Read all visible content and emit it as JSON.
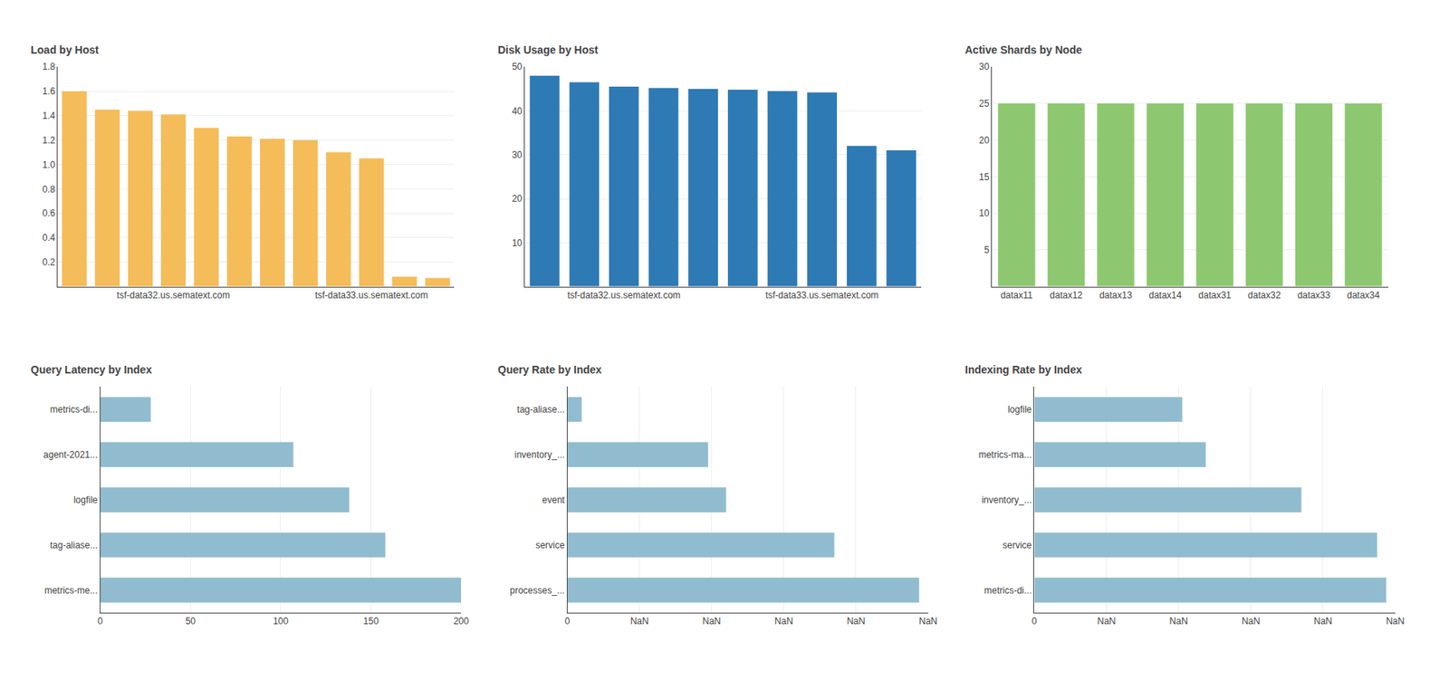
{
  "chart_data": [
    {
      "type": "bar",
      "title": "Load by Host",
      "categories": [
        null,
        null,
        null,
        "tsf-data32.us.sematext.com",
        null,
        null,
        null,
        null,
        null,
        "tsf-data33.us.sematext.com",
        null,
        null
      ],
      "values": [
        1.6,
        1.45,
        1.44,
        1.41,
        1.3,
        1.23,
        1.21,
        1.2,
        1.1,
        1.05,
        0.08,
        0.07
      ],
      "color": "#f5bc5a",
      "ylim": [
        0,
        1.8
      ],
      "yticks": [
        0.2,
        0.4,
        0.6,
        0.8,
        {
          "value": 1.0,
          "label": "1.0"
        },
        1.2,
        1.4,
        1.6,
        1.8
      ],
      "grid": true
    },
    {
      "type": "bar",
      "title": "Disk Usage by Host",
      "categories": [
        null,
        null,
        "tsf-data32.us.sematext.com",
        null,
        null,
        null,
        null,
        "tsf-data33.us.sematext.com",
        null,
        null
      ],
      "values": [
        48,
        46.5,
        45.5,
        45.2,
        45.0,
        44.8,
        44.5,
        44.2,
        32,
        31
      ],
      "color": "#2e7ab5",
      "ylim": [
        0,
        50
      ],
      "yticks": [
        10,
        20,
        30,
        40,
        50
      ],
      "grid": true
    },
    {
      "type": "bar",
      "title": "Active Shards by Node",
      "categories": [
        "datax11",
        "datax12",
        "datax13",
        "datax14",
        "datax31",
        "datax32",
        "datax33",
        "datax34"
      ],
      "values": [
        25,
        25,
        25,
        25,
        25,
        25,
        25,
        25
      ],
      "color": "#8dc870",
      "ylim": [
        0,
        30
      ],
      "yticks": [
        5,
        10,
        15,
        20,
        25,
        30
      ],
      "grid": true
    },
    {
      "type": "bar",
      "orientation": "horizontal",
      "title": "Query Latency by Index",
      "categories": [
        "metrics-me...",
        "tag-aliase...",
        "logfile",
        "agent-2021...",
        "metrics-di..."
      ],
      "values": [
        200,
        158,
        138,
        107,
        28
      ],
      "color": "#91bccf",
      "xlim": [
        0,
        200
      ],
      "xticks": [
        0,
        50,
        100,
        150,
        200
      ],
      "grid": true
    },
    {
      "type": "bar",
      "orientation": "horizontal",
      "title": "Query Rate by Index",
      "categories": [
        "processes_...",
        "service",
        "event",
        "inventory_...",
        "tag-aliase..."
      ],
      "values": [
        195,
        148,
        88,
        78,
        8
      ],
      "color": "#91bccf",
      "xlim": [
        0,
        200
      ],
      "xticks": [
        0,
        {
          "value": 40,
          "label": "NaN"
        },
        {
          "value": 80,
          "label": "NaN"
        },
        {
          "value": 120,
          "label": "NaN"
        },
        {
          "value": 160,
          "label": "NaN"
        },
        {
          "value": 200,
          "label": "NaN"
        }
      ],
      "grid": true
    },
    {
      "type": "bar",
      "orientation": "horizontal",
      "title": "Indexing Rate by Index",
      "categories": [
        "metrics-di...",
        "service",
        "inventory_...",
        "metrics-ma...",
        "logfile"
      ],
      "values": [
        195,
        190,
        148,
        95,
        82
      ],
      "color": "#91bccf",
      "xlim": [
        0,
        200
      ],
      "xticks": [
        0,
        {
          "value": 40,
          "label": "NaN"
        },
        {
          "value": 80,
          "label": "NaN"
        },
        {
          "value": 120,
          "label": "NaN"
        },
        {
          "value": 160,
          "label": "NaN"
        },
        {
          "value": 200,
          "label": "NaN"
        }
      ],
      "grid": true
    }
  ]
}
